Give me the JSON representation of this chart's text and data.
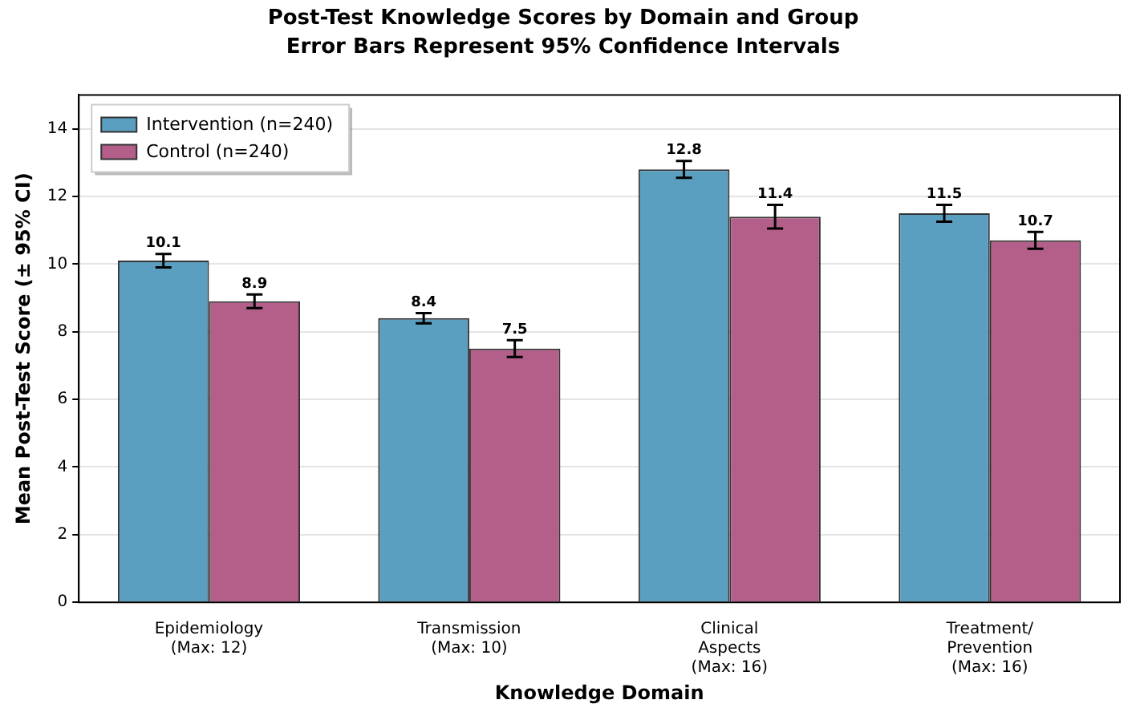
{
  "chart_data": {
    "type": "bar",
    "title": "Post-Test Knowledge Scores by Domain and Group",
    "subtitle": "Error Bars Represent 95% Confidence Intervals",
    "xlabel": "Knowledge Domain",
    "ylabel": "Mean Post-Test Score (± 95% CI)",
    "categories": [
      "Epidemiology\n(Max: 12)",
      "Transmission\n(Max: 10)",
      "Clinical\nAspects\n(Max: 16)",
      "Treatment/\nPrevention\n(Max: 16)"
    ],
    "series": [
      {
        "name": "Intervention (n=240)",
        "color": "#5a9fbf",
        "values": [
          10.1,
          8.4,
          12.8,
          11.5
        ],
        "errors": [
          0.2,
          0.15,
          0.25,
          0.25
        ]
      },
      {
        "name": "Control (n=240)",
        "color": "#b35f8a",
        "values": [
          8.9,
          7.5,
          11.4,
          10.7
        ],
        "errors": [
          0.2,
          0.25,
          0.35,
          0.25
        ]
      }
    ],
    "ylim": [
      0,
      15
    ],
    "yticks": [
      0,
      2,
      4,
      6,
      8,
      10,
      12,
      14
    ],
    "grid": "y",
    "legend": "top left",
    "data_labels": true
  }
}
